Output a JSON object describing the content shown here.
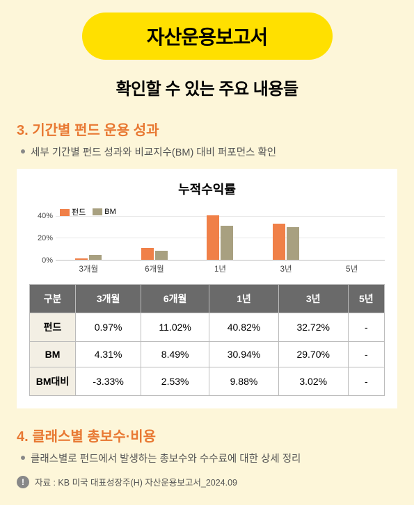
{
  "titleBanner": "자산운용보고서",
  "subtitle": "확인할 수 있는 주요 내용들",
  "section3": {
    "heading": "3. 기간별 펀드 운용 성과",
    "bullet": "세부 기간별 펀드 성과와 비교지수(BM) 대비 퍼포먼스 확인"
  },
  "chart": {
    "title": "누적수익률",
    "type": "bar",
    "ymax": 50,
    "ytick_step": 20,
    "yticks": [
      "40%",
      "20%",
      "0%"
    ],
    "categories": [
      "3개월",
      "6개월",
      "1년",
      "3년",
      "5년"
    ],
    "legend": {
      "fund": "펀드",
      "bm": "BM"
    },
    "fund_values": [
      0.97,
      11.02,
      40.82,
      32.72,
      null
    ],
    "bm_values": [
      4.31,
      8.49,
      30.94,
      29.7,
      null
    ],
    "colors": {
      "fund": "#f08048",
      "bm": "#a8a080",
      "grid": "#e8e8e8",
      "axis": "#bbbbbb"
    }
  },
  "table": {
    "header": [
      "구분",
      "3개월",
      "6개월",
      "1년",
      "3년",
      "5년"
    ],
    "rows": [
      {
        "label": "펀드",
        "cells": [
          "0.97%",
          "11.02%",
          "40.82%",
          "32.72%",
          "-"
        ]
      },
      {
        "label": "BM",
        "cells": [
          "4.31%",
          "8.49%",
          "30.94%",
          "29.70%",
          "-"
        ]
      },
      {
        "label": "BM대비",
        "cells": [
          "-3.33%",
          "2.53%",
          "9.88%",
          "3.02%",
          "-"
        ]
      }
    ]
  },
  "section4": {
    "heading": "4. 클래스별 총보수·비용",
    "bullet": "클래스별로 펀드에서 발생하는 총보수와 수수료에 대한 상세 정리"
  },
  "footer": {
    "icon": "!",
    "text": "자료 : KB 미국 대표성장주(H) 자산운용보고서_2024.09"
  }
}
